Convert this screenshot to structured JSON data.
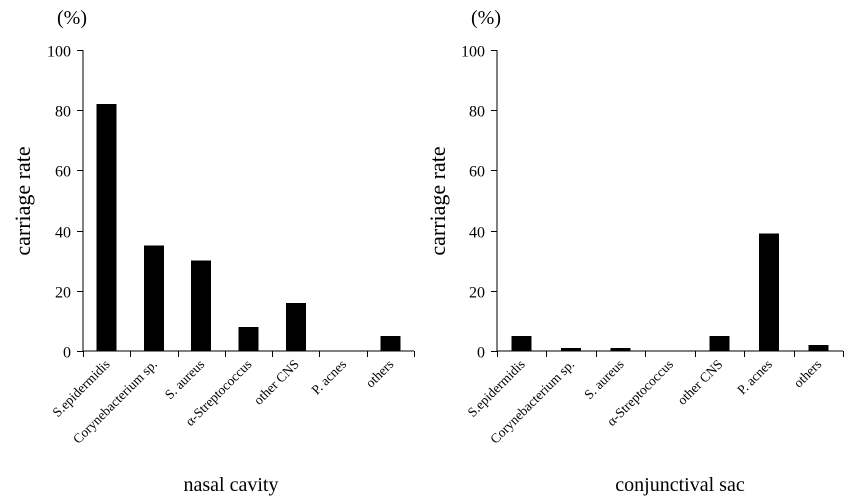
{
  "chart_data": [
    {
      "type": "bar",
      "unit_label": "(%)",
      "ylabel": "carriage rate",
      "xlabel": "nasal cavity",
      "ylim": [
        0,
        100
      ],
      "yticks": [
        0,
        20,
        40,
        60,
        80,
        100
      ],
      "categories": [
        "S.epidermidis",
        "Corynebacterium sp.",
        "S. aureus",
        "α-Streptococcus",
        "other CNS",
        "P. acnes",
        "others"
      ],
      "values": [
        82,
        35,
        30,
        8,
        16,
        0,
        5
      ],
      "bar_color": "#000000"
    },
    {
      "type": "bar",
      "unit_label": "(%)",
      "ylabel": "carriage rate",
      "xlabel": "conjunctival sac",
      "ylim": [
        0,
        100
      ],
      "yticks": [
        0,
        20,
        40,
        60,
        80,
        100
      ],
      "categories": [
        "S.epidermidis",
        "Corynebacterium sp.",
        "S. aureus",
        "α-Streptococcus",
        "other CNS",
        "P. acnes",
        "others"
      ],
      "values": [
        5,
        1,
        1,
        0,
        5,
        39,
        2
      ],
      "bar_color": "#000000"
    }
  ]
}
